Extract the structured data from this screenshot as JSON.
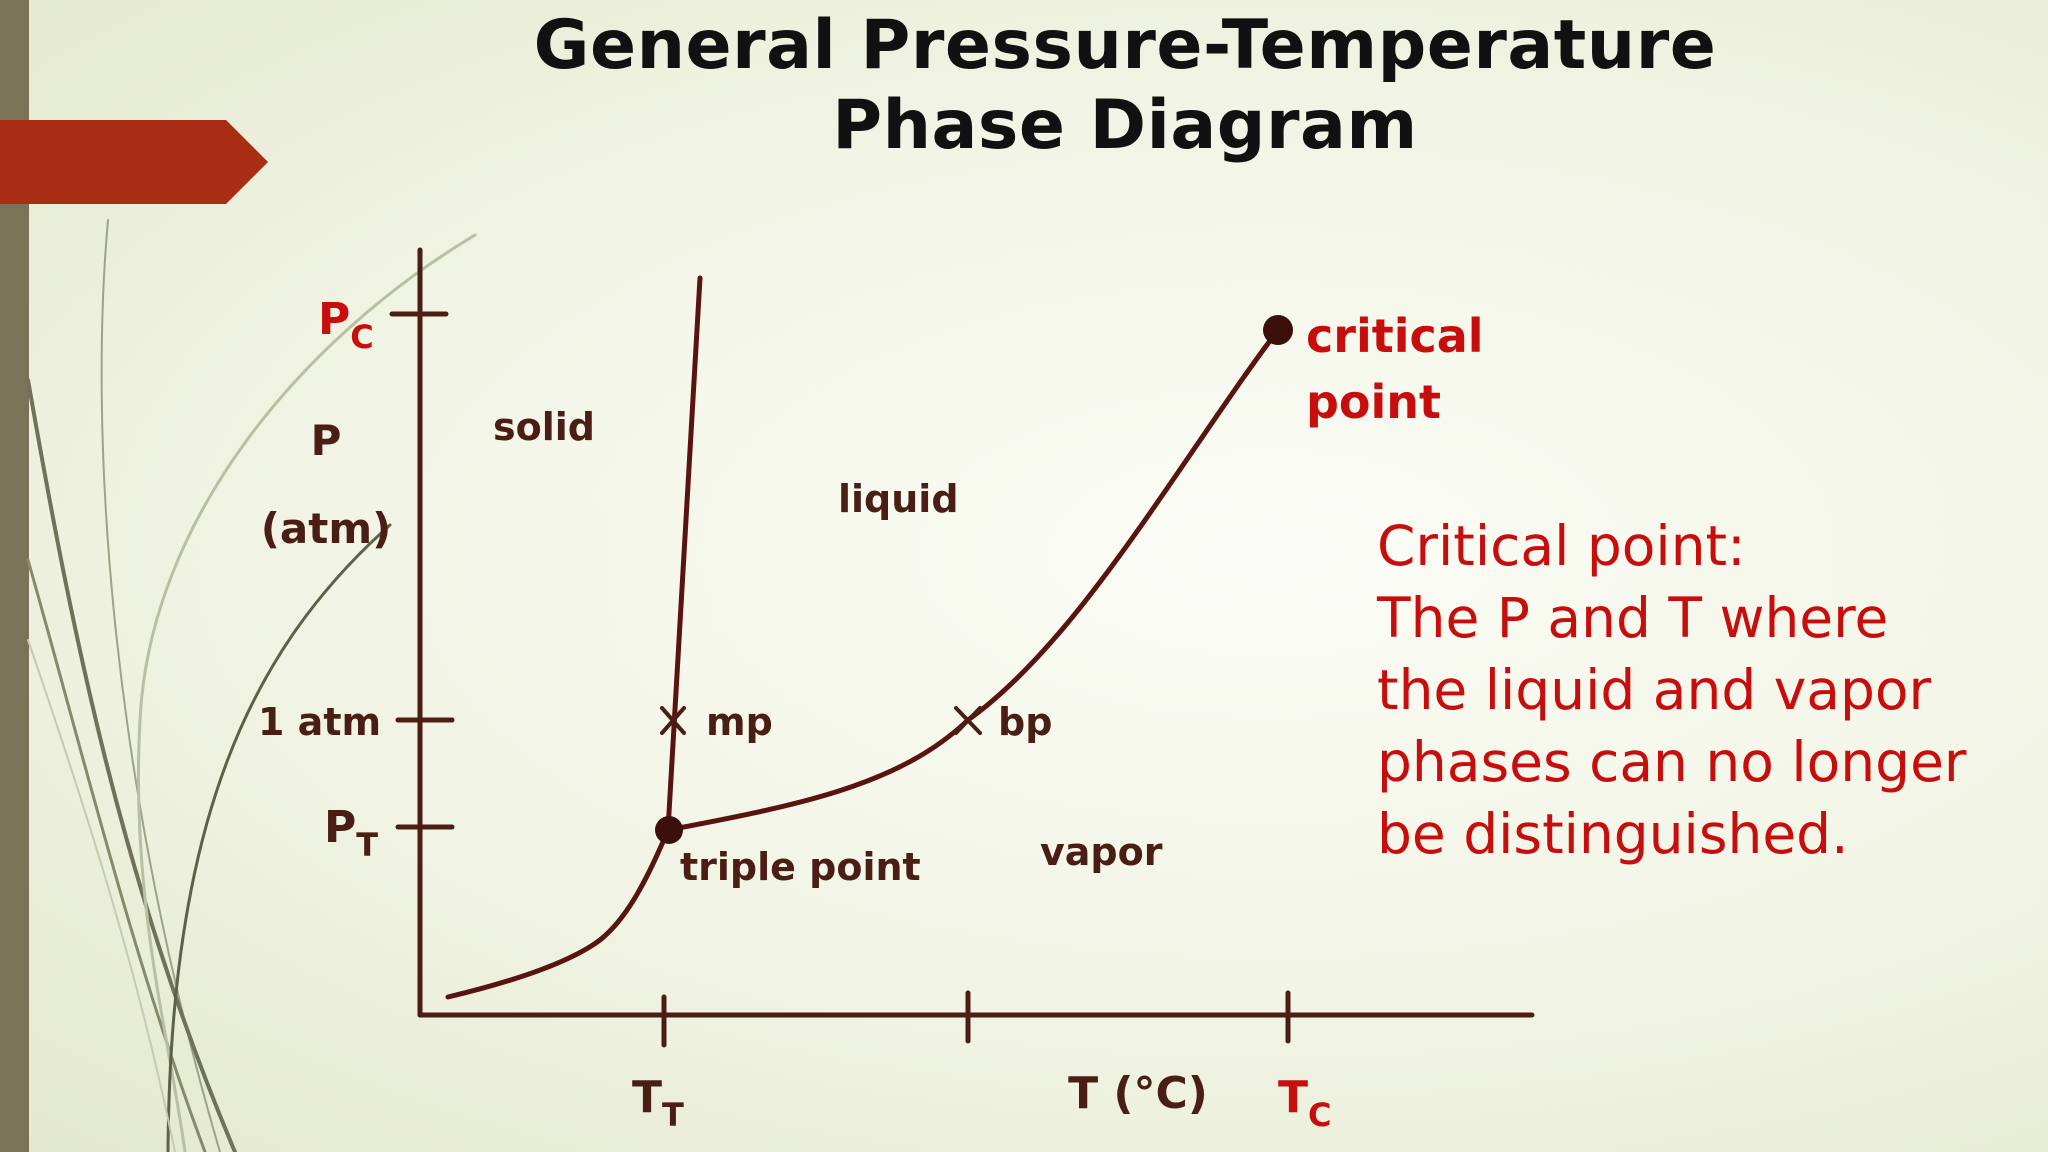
{
  "slide": {
    "title_line1": "General Pressure-Temperature",
    "title_line2": "Phase Diagram"
  },
  "diagram": {
    "y_axis": {
      "label": "P",
      "unit": "(atm)"
    },
    "x_axis": {
      "label": "T (°C)"
    },
    "y_ticks": {
      "pc_main": "P",
      "pc_sub": "C",
      "one_atm": "1 atm",
      "pt_main": "P",
      "pt_sub": "T"
    },
    "x_ticks": {
      "tt_main": "T",
      "tt_sub": "T",
      "tc_main": "T",
      "tc_sub": "C"
    },
    "regions": {
      "solid": "solid",
      "liquid": "liquid",
      "vapor": "vapor"
    },
    "points": {
      "mp": "mp",
      "bp": "bp",
      "triple_point": "triple point",
      "critical_line1": "critical",
      "critical_line2": "point"
    },
    "colors": {
      "curve": "#5a1410",
      "accent": "#c80d0d",
      "label": "#4a1e14",
      "banner": "#a82d14"
    }
  },
  "definition": {
    "lines": [
      "Critical point:",
      "The P and T where",
      "the liquid and vapor",
      "phases can no longer",
      "be distinguished."
    ]
  }
}
